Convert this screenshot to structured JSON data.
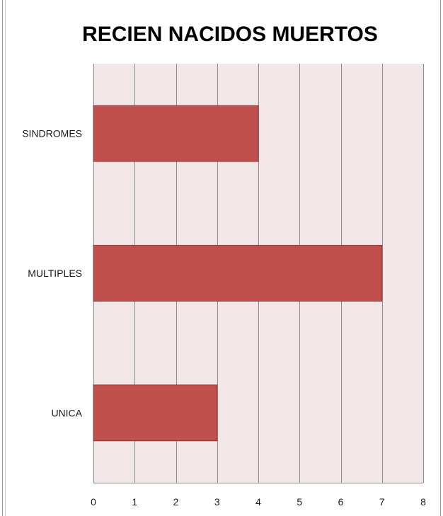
{
  "chart_data": {
    "type": "bar",
    "orientation": "horizontal",
    "title": "RECIEN NACIDOS MUERTOS",
    "categories": [
      "SINDROMES",
      "MULTIPLES",
      "UNICA"
    ],
    "values": [
      4,
      7,
      3
    ],
    "xlim": [
      0,
      8
    ],
    "x_ticks": [
      "0",
      "1",
      "2",
      "3",
      "4",
      "5",
      "6",
      "7",
      "8"
    ],
    "grid": "vertical",
    "legend": "none",
    "colors": {
      "bar": "#c0504d",
      "bar_border": "#8c3836",
      "plot_background": "#f2e6e6",
      "gridline": "#8c8c8c"
    }
  }
}
